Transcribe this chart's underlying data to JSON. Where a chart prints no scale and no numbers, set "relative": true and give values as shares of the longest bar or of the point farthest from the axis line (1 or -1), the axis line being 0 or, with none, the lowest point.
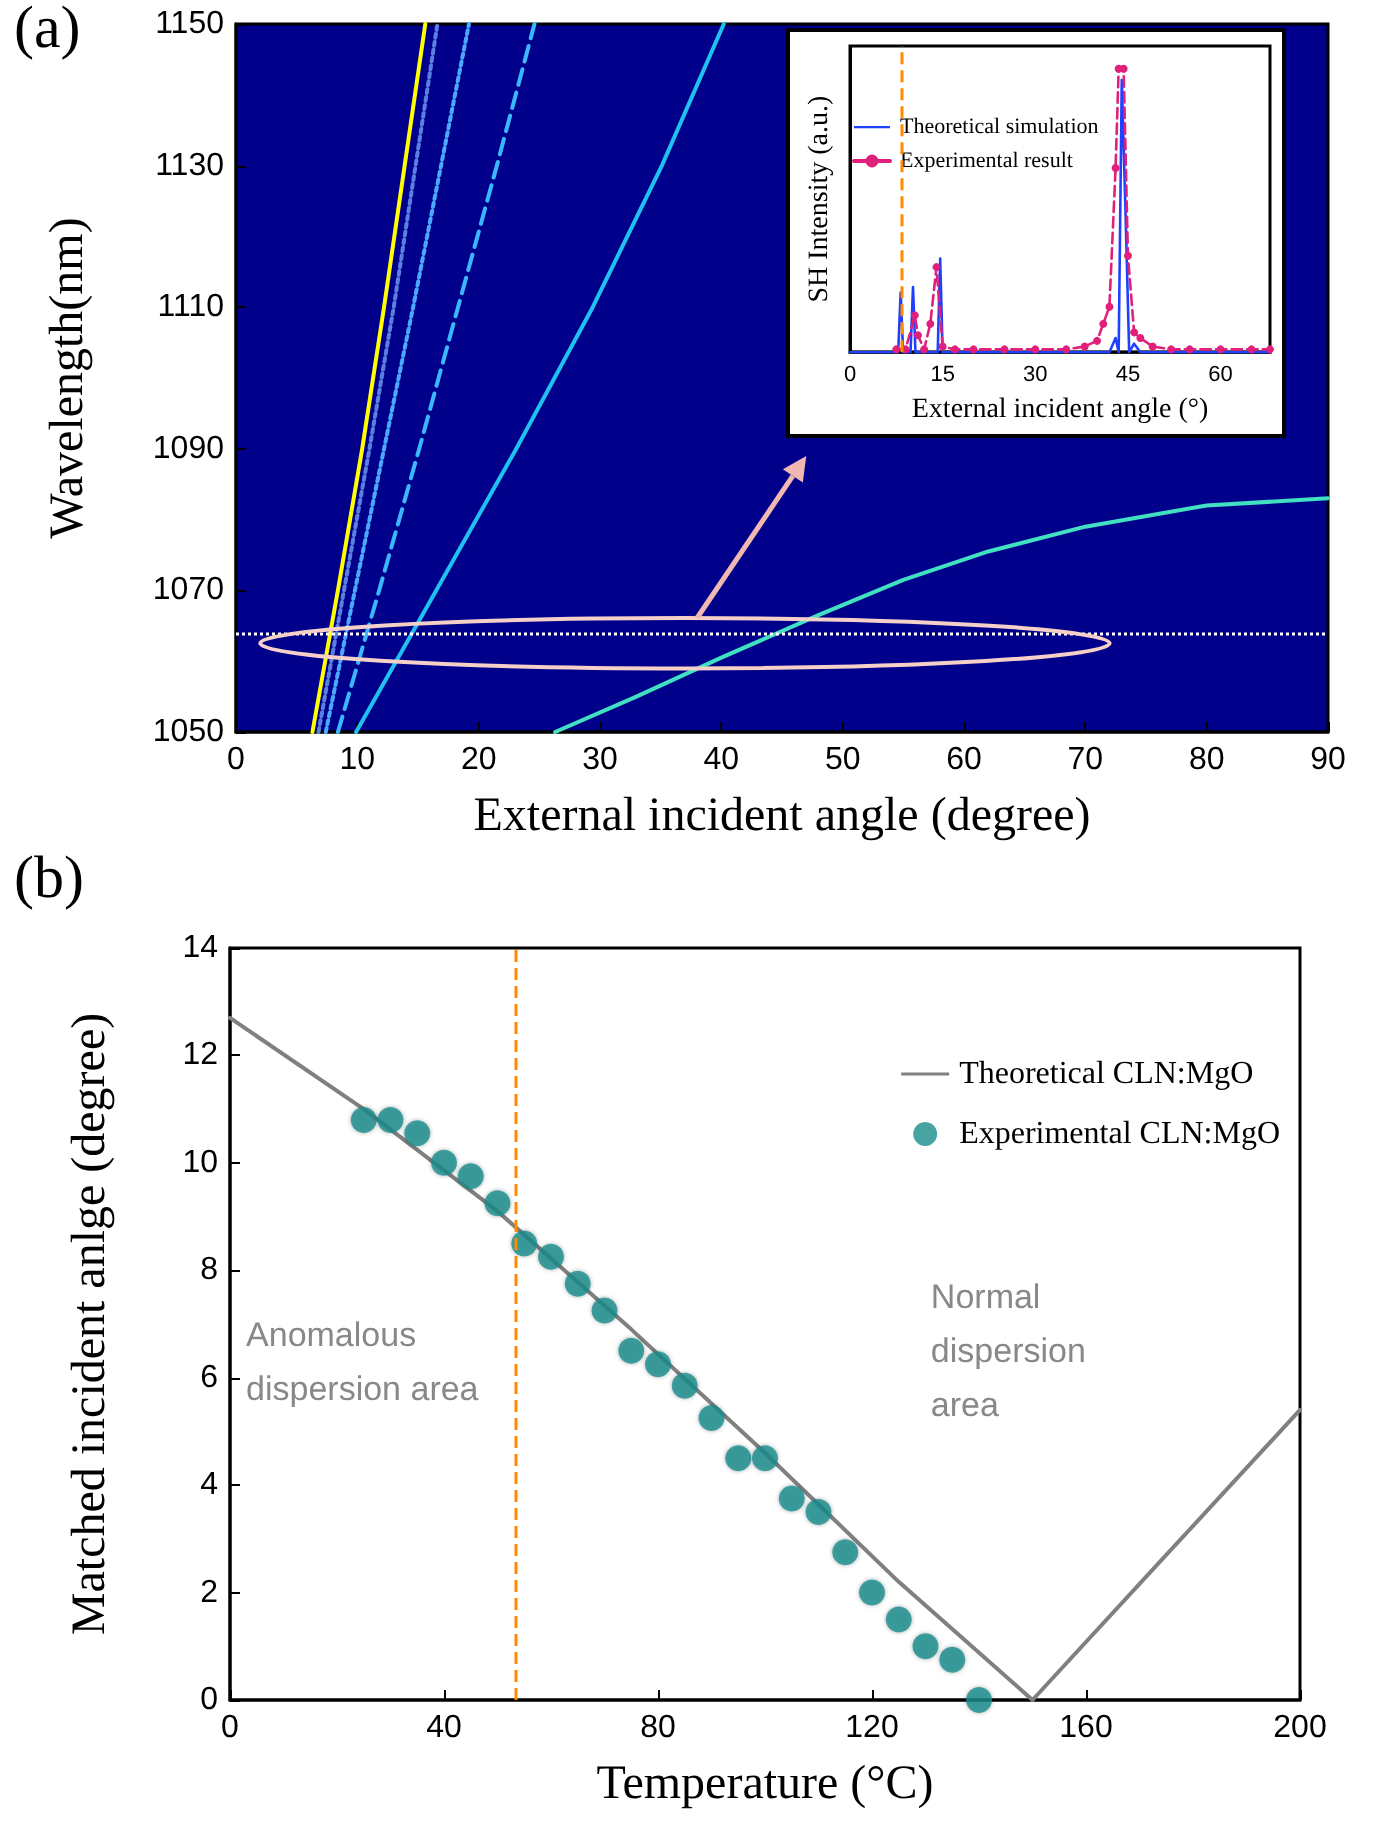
{
  "chart_data": [
    {
      "type": "line",
      "title": "(a)",
      "xlabel": "External incident angle (degree)",
      "ylabel": "Wavelength(nm)",
      "xlim": [
        0,
        90
      ],
      "xticks": [
        0,
        10,
        20,
        30,
        40,
        50,
        60,
        70,
        80,
        90
      ],
      "ylim": [
        1050,
        1150
      ],
      "yticks": [
        1050,
        1070,
        1090,
        1110,
        1130,
        1150
      ],
      "series": [
        {
          "color": "#ffff00",
          "x": [
            6.3,
            8.4,
            10.4,
            12.2,
            13.9,
            15.6
          ],
          "values": [
            1050,
            1070,
            1090,
            1110,
            1130,
            1150
          ]
        },
        {
          "color": "#5a7fe0",
          "line_style": "dotted",
          "x": [
            6.8,
            8.9,
            11.0,
            13.0,
            14.8,
            16.6
          ],
          "values": [
            1050,
            1070,
            1090,
            1110,
            1130,
            1150
          ]
        },
        {
          "color": "#4aa8ff",
          "line_style": "dotted",
          "x": [
            7.4,
            9.8,
            12.2,
            14.6,
            16.9,
            19.2
          ],
          "values": [
            1050,
            1070,
            1090,
            1110,
            1130,
            1150
          ]
        },
        {
          "color": "#3ab8ff",
          "line_style": "dashed",
          "x": [
            8.4,
            11.8,
            15.1,
            18.3,
            21.5,
            24.6
          ],
          "values": [
            1050,
            1070,
            1090,
            1110,
            1130,
            1150
          ]
        },
        {
          "color": "#20c0f0",
          "x": [
            9.9,
            16.5,
            23.1,
            29.4,
            35.1,
            40.2
          ],
          "values": [
            1050,
            1070,
            1090,
            1110,
            1130,
            1150
          ]
        },
        {
          "color": "#40e0c0",
          "x": [
            26.3,
            33,
            40,
            48,
            55,
            62,
            70,
            80,
            90
          ],
          "values": [
            1050,
            1055,
            1060.5,
            1066.5,
            1071.5,
            1075.5,
            1079,
            1082,
            1083
          ]
        }
      ],
      "ref_lines": [
        {
          "axis": "y",
          "value": 1064,
          "color": "#ffffff",
          "line_style": "dotted"
        }
      ]
    },
    {
      "type": "line",
      "xlabel": "External incident angle (°)",
      "ylabel": "SH Intensity (a.u.)",
      "relative": true,
      "xlim": [
        0,
        68
      ],
      "xticks": [
        0,
        15,
        30,
        45,
        60
      ],
      "legend": "top left",
      "series": [
        {
          "name": "Theoretical simulation",
          "color": "#2040ff",
          "marker": "none",
          "x": [
            0,
            7.8,
            8.2,
            8.6,
            9.8,
            10.2,
            10.6,
            14.2,
            14.6,
            15,
            42,
            43,
            43.5,
            44,
            44.6,
            45.2,
            46,
            47,
            68
          ],
          "values": [
            0,
            0,
            0.21,
            0,
            0,
            0.23,
            0,
            0,
            0.33,
            0,
            0,
            0.05,
            0,
            0.96,
            0.5,
            0,
            0.03,
            0,
            0
          ]
        },
        {
          "name": "Experimental result",
          "color": "#e0207a",
          "marker": "circle",
          "line_style": "dashed",
          "x": [
            7.5,
            9,
            10.5,
            11,
            12,
            13,
            14,
            15,
            17,
            20,
            25,
            30,
            35,
            38,
            40,
            41,
            42,
            43,
            43.5,
            44.3,
            45,
            46,
            47,
            49,
            52,
            55,
            60,
            65,
            68
          ],
          "values": [
            0.01,
            0.01,
            0.13,
            0.06,
            0.01,
            0.1,
            0.3,
            0.02,
            0.01,
            0.01,
            0.01,
            0.01,
            0.01,
            0.02,
            0.04,
            0.1,
            0.16,
            0.65,
            1,
            1,
            0.34,
            0.07,
            0.05,
            0.02,
            0.01,
            0.01,
            0.01,
            0.01,
            0.01
          ]
        }
      ],
      "ref_lines": [
        {
          "axis": "x",
          "value": 8.2,
          "color": "#ff8c00",
          "line_style": "dashed"
        }
      ]
    },
    {
      "type": "line",
      "title": "(b)",
      "xlabel": "Temperature (°C)",
      "ylabel": "Matched incident anlge (degree)",
      "xlim": [
        0,
        200
      ],
      "xticks": [
        0,
        40,
        80,
        120,
        160,
        200
      ],
      "ylim": [
        0,
        14
      ],
      "yticks": [
        0,
        2,
        4,
        6,
        8,
        10,
        12,
        14
      ],
      "legend": "top right",
      "series": [
        {
          "name": "Theoretical CLN:MgO",
          "color": "#808080",
          "marker": "none",
          "x": [
            0,
            25,
            50,
            75,
            100,
            125,
            150,
            175,
            200
          ],
          "values": [
            12.7,
            11,
            9.1,
            6.9,
            4.6,
            2.2,
            0,
            2.7,
            5.4
          ]
        },
        {
          "name": "Experimental CLN:MgO",
          "type": "scatter",
          "color": "#1a8c8c",
          "marker": "circle",
          "x": [
            25,
            30,
            35,
            40,
            45,
            50,
            55,
            60,
            65,
            70,
            75,
            80,
            85,
            90,
            95,
            100,
            105,
            110,
            115,
            120,
            125,
            130,
            135,
            140
          ],
          "values": [
            10.8,
            10.8,
            10.55,
            10.0,
            9.75,
            9.25,
            8.5,
            8.25,
            7.75,
            7.25,
            6.5,
            6.25,
            5.85,
            5.25,
            4.5,
            4.5,
            3.75,
            3.5,
            2.75,
            2.0,
            1.5,
            1.0,
            0.75,
            0
          ]
        }
      ],
      "ref_lines": [
        {
          "axis": "x",
          "value": 53.5,
          "color": "#ff8c00",
          "line_style": "dashed"
        }
      ],
      "annotations": [
        "Anomalous\ndispersion area",
        "Normal\ndispersion\narea"
      ]
    }
  ]
}
